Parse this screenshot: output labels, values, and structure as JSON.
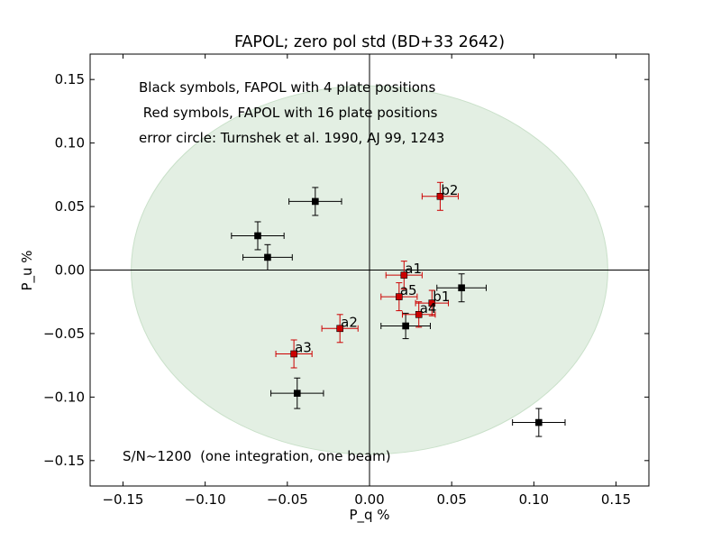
{
  "chart_data": {
    "type": "scatter",
    "title": "FAPOL; zero pol std (BD+33 2642)",
    "xlabel": "P_q %",
    "ylabel": "P_u %",
    "xlim": [
      -0.17,
      0.17
    ],
    "ylim": [
      -0.17,
      0.17
    ],
    "xticks": [
      -0.15,
      -0.1,
      -0.05,
      0.0,
      0.05,
      0.1,
      0.15
    ],
    "yticks": [
      -0.15,
      -0.1,
      -0.05,
      0.0,
      0.05,
      0.1,
      0.15
    ],
    "xtick_labels": [
      "−0.15",
      "−0.10",
      "−0.05",
      "0.00",
      "0.05",
      "0.10",
      "0.15"
    ],
    "ytick_labels": [
      "−0.15",
      "−0.10",
      "−0.05",
      "0.00",
      "0.05",
      "0.10",
      "0.15"
    ],
    "annotations": [
      "Black symbols, FAPOL with 4 plate positions",
      " Red symbols, FAPOL with 16 plate positions",
      "error circle: Turnshek et al. 1990, AJ 99, 1243",
      "S/N~1200  (one integration, one beam)"
    ],
    "error_circle": {
      "cx": 0.0,
      "cy": 0.0,
      "rx": 0.145,
      "ry": 0.145,
      "color": "#e3efe3",
      "edge": "#c9e0c9"
    },
    "grid": false,
    "series": [
      {
        "color": "#000000",
        "points": [
          {
            "x": -0.033,
            "y": 0.054,
            "xerr": 0.016,
            "yerr": 0.011
          },
          {
            "x": -0.068,
            "y": 0.027,
            "xerr": 0.016,
            "yerr": 0.011
          },
          {
            "x": -0.062,
            "y": 0.01,
            "xerr": 0.015,
            "yerr": 0.01
          },
          {
            "x": 0.056,
            "y": -0.014,
            "xerr": 0.015,
            "yerr": 0.011
          },
          {
            "x": 0.022,
            "y": -0.044,
            "xerr": 0.015,
            "yerr": 0.01
          },
          {
            "x": -0.044,
            "y": -0.097,
            "xerr": 0.016,
            "yerr": 0.012
          },
          {
            "x": 0.103,
            "y": -0.12,
            "xerr": 0.016,
            "yerr": 0.011
          }
        ]
      },
      {
        "color": "#cc0000",
        "points": [
          {
            "x": 0.043,
            "y": 0.058,
            "label": "b2",
            "xerr": 0.011,
            "yerr": 0.011
          },
          {
            "x": 0.021,
            "y": -0.004,
            "label": "a1",
            "xerr": 0.011,
            "yerr": 0.011
          },
          {
            "x": 0.018,
            "y": -0.021,
            "label": "a5",
            "xerr": 0.011,
            "yerr": 0.011
          },
          {
            "x": 0.038,
            "y": -0.026,
            "label": "b1",
            "xerr": 0.01,
            "yerr": 0.01
          },
          {
            "x": 0.03,
            "y": -0.035,
            "label": "a4",
            "xerr": 0.01,
            "yerr": 0.01
          },
          {
            "x": -0.018,
            "y": -0.046,
            "label": "a2",
            "xerr": 0.011,
            "yerr": 0.011
          },
          {
            "x": -0.046,
            "y": -0.066,
            "label": "a3",
            "xerr": 0.011,
            "yerr": 0.011
          }
        ]
      }
    ]
  }
}
